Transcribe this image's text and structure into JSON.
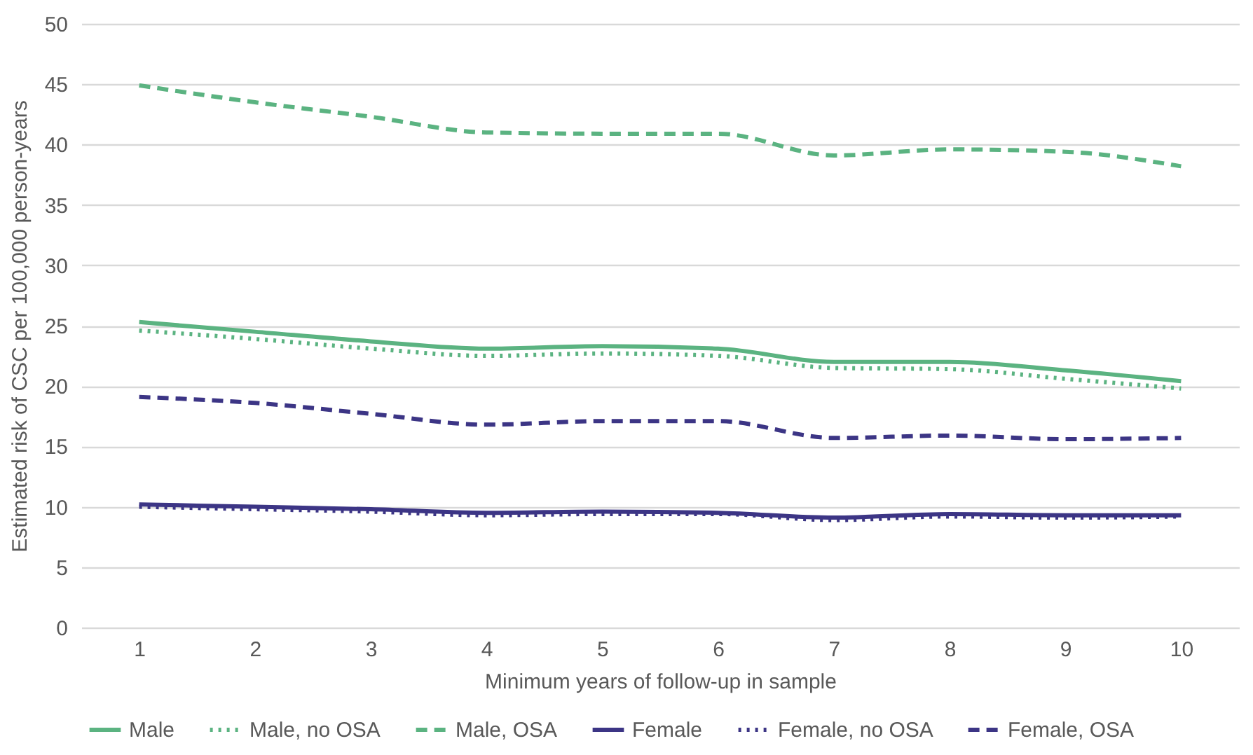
{
  "chart_data": {
    "type": "line",
    "xlabel": "Minimum years of follow-up in sample",
    "ylabel": "Estimated risk of CSC per 100,000 person-years",
    "categories": [
      "1",
      "2",
      "3",
      "4",
      "5",
      "6",
      "7",
      "8",
      "9",
      "10"
    ],
    "ylim": [
      0,
      50
    ],
    "yticks": [
      0,
      5,
      10,
      15,
      20,
      25,
      30,
      35,
      40,
      45,
      50
    ],
    "grid": "y",
    "legend": "bottom",
    "marker": "none",
    "series": [
      {
        "name": "Male",
        "color": "#5bb381",
        "line_style": "solid",
        "values": [
          25.3,
          24.5,
          23.7,
          23.1,
          23.3,
          23.1,
          22.0,
          22.0,
          21.3,
          20.4
        ]
      },
      {
        "name": "Male, no OSA",
        "color": "#5bb381",
        "line_style": "dotted",
        "values": [
          24.6,
          23.9,
          23.1,
          22.5,
          22.7,
          22.5,
          21.5,
          21.4,
          20.6,
          19.8
        ]
      },
      {
        "name": "Male, OSA",
        "color": "#5bb381",
        "line_style": "dashed",
        "values": [
          44.9,
          43.5,
          42.3,
          41.0,
          40.9,
          40.9,
          39.1,
          39.6,
          39.4,
          38.2
        ]
      },
      {
        "name": "Female",
        "color": "#3c3585",
        "line_style": "solid",
        "values": [
          10.2,
          10.0,
          9.8,
          9.5,
          9.6,
          9.5,
          9.1,
          9.4,
          9.3,
          9.3
        ]
      },
      {
        "name": "Female, no OSA",
        "color": "#3c3585",
        "line_style": "dotted",
        "values": [
          10.0,
          9.8,
          9.6,
          9.3,
          9.4,
          9.4,
          8.9,
          9.2,
          9.1,
          9.2
        ]
      },
      {
        "name": "Female, OSA",
        "color": "#3c3585",
        "line_style": "dashed",
        "values": [
          19.1,
          18.6,
          17.7,
          16.8,
          17.1,
          17.1,
          15.7,
          15.9,
          15.6,
          15.7
        ]
      }
    ]
  }
}
